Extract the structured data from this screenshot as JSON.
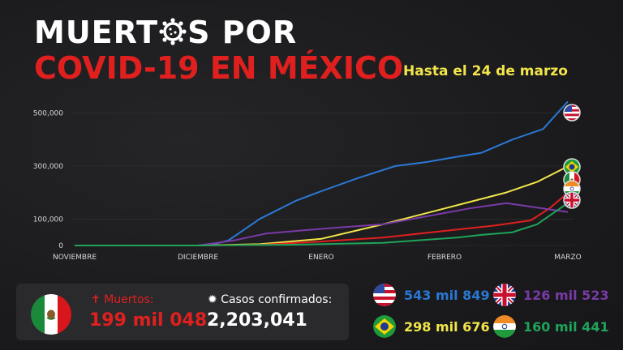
{
  "header": {
    "title_part1": "MUERT",
    "title_part2": "S POR",
    "title_line2": "COVID-19 EN MÉXICO",
    "subtitle": "Hasta el 24 de marzo"
  },
  "colors": {
    "usa": "#2a78d4",
    "brazil": "#f2e64a",
    "mexico": "#e0201e",
    "uk": "#7a3aa6",
    "india": "#1fa35a"
  },
  "chart_data": {
    "type": "line",
    "title": "Muertos por COVID-19 en México",
    "xlabel": "",
    "ylabel": "",
    "categories": [
      "NOVIEMBRE",
      "DICIEMBRE",
      "ENERO",
      "FEBRERO",
      "MARZO"
    ],
    "y_ticks": [
      "500,000",
      "300,000",
      "100,000",
      "0"
    ],
    "y_tick_values": [
      500000,
      300000,
      100000,
      0
    ],
    "ylim": [
      0,
      560000
    ],
    "xlim": [
      0,
      4
    ],
    "series": [
      {
        "name": "Estados Unidos",
        "color_key": "usa",
        "points": [
          [
            0,
            0
          ],
          [
            1,
            0
          ],
          [
            1.12,
            3000
          ],
          [
            1.25,
            20000
          ],
          [
            1.5,
            100000
          ],
          [
            1.8,
            170000
          ],
          [
            2,
            205000
          ],
          [
            2.3,
            255000
          ],
          [
            2.6,
            300000
          ],
          [
            2.85,
            315000
          ],
          [
            3.1,
            335000
          ],
          [
            3.3,
            350000
          ],
          [
            3.55,
            400000
          ],
          [
            3.8,
            440000
          ],
          [
            4,
            543849
          ]
        ]
      },
      {
        "name": "Brasil",
        "color_key": "brazil",
        "points": [
          [
            0,
            0
          ],
          [
            1,
            0
          ],
          [
            1.5,
            5000
          ],
          [
            2,
            25000
          ],
          [
            2.5,
            80000
          ],
          [
            3,
            140000
          ],
          [
            3.5,
            200000
          ],
          [
            3.75,
            240000
          ],
          [
            4,
            298676
          ]
        ]
      },
      {
        "name": "México",
        "color_key": "mexico",
        "points": [
          [
            0,
            0
          ],
          [
            1,
            0
          ],
          [
            1.5,
            2000
          ],
          [
            2,
            15000
          ],
          [
            2.5,
            30000
          ],
          [
            3,
            55000
          ],
          [
            3.4,
            75000
          ],
          [
            3.7,
            95000
          ],
          [
            3.85,
            140000
          ],
          [
            4,
            199048
          ]
        ]
      },
      {
        "name": "Reino Unido",
        "color_key": "uk",
        "points": [
          [
            0,
            0
          ],
          [
            1,
            0
          ],
          [
            1.3,
            20000
          ],
          [
            1.55,
            45000
          ],
          [
            1.8,
            55000
          ],
          [
            2.2,
            70000
          ],
          [
            2.5,
            80000
          ],
          [
            2.85,
            110000
          ],
          [
            3.2,
            140000
          ],
          [
            3.5,
            160000
          ],
          [
            4,
            126523
          ]
        ]
      },
      {
        "name": "India",
        "color_key": "india",
        "points": [
          [
            0,
            0
          ],
          [
            1,
            0
          ],
          [
            1.8,
            3000
          ],
          [
            2.5,
            10000
          ],
          [
            2.8,
            20000
          ],
          [
            3.1,
            30000
          ],
          [
            3.3,
            40000
          ],
          [
            3.55,
            50000
          ],
          [
            3.75,
            80000
          ],
          [
            4,
            160441
          ]
        ]
      }
    ]
  },
  "mexico_panel": {
    "dead_label": "Muertos:",
    "dead_value": "199 mil 048",
    "cases_label": "Casos confirmados:",
    "cases_value": "2,203,041"
  },
  "countries": [
    {
      "name": "usa",
      "value": "543 mil 849"
    },
    {
      "name": "uk",
      "value": "126 mil 523"
    },
    {
      "name": "brazil",
      "value": "298 mil 676"
    },
    {
      "name": "india",
      "value": "160 mil 441"
    }
  ]
}
